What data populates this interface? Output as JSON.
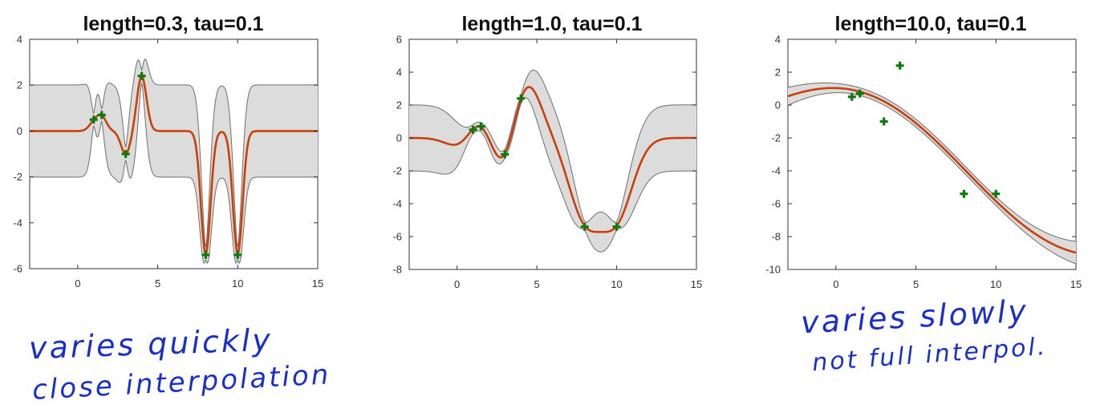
{
  "chart_data": [
    {
      "type": "line",
      "title": "length=0.3, tau=0.1",
      "length_scale": 0.3,
      "xlim": [
        -3,
        15
      ],
      "ylim": [
        -6,
        4
      ],
      "xticks": [
        "0",
        "5",
        "10",
        "15"
      ],
      "yticks": [
        "4",
        "2",
        "0",
        "-2",
        "-4",
        "-6"
      ],
      "points": [
        [
          1,
          0.5
        ],
        [
          1.5,
          0.7
        ],
        [
          3,
          -1
        ],
        [
          4,
          2.4
        ],
        [
          8,
          -5.4
        ],
        [
          10,
          -5.4
        ]
      ],
      "series": [
        {
          "label": "mean",
          "values": "mean"
        },
        {
          "label": "band",
          "values": "±2 std"
        }
      ],
      "annotation": [
        "varies quickly",
        "close interpolation"
      ]
    },
    {
      "type": "line",
      "title": "length=1.0, tau=0.1",
      "length_scale": 1.0,
      "xlim": [
        -3,
        15
      ],
      "ylim": [
        -8,
        6
      ],
      "xticks": [
        "0",
        "5",
        "10",
        "15"
      ],
      "yticks": [
        "6",
        "4",
        "2",
        "0",
        "-2",
        "-4",
        "-6",
        "-8"
      ],
      "points": [
        [
          1,
          0.5
        ],
        [
          1.5,
          0.7
        ],
        [
          3,
          -1
        ],
        [
          4,
          2.4
        ],
        [
          8,
          -5.4
        ],
        [
          10,
          -5.4
        ]
      ]
    },
    {
      "type": "line",
      "title": "length=10.0, tau=0.1",
      "length_scale": 10.0,
      "xlim": [
        -3,
        15
      ],
      "ylim": [
        -10,
        4
      ],
      "xticks": [
        "0",
        "5",
        "10",
        "15"
      ],
      "yticks": [
        "4",
        "2",
        "0",
        "-2",
        "-4",
        "-6",
        "-8",
        "-10"
      ],
      "points": [
        [
          1,
          0.5
        ],
        [
          1.5,
          0.7
        ],
        [
          3,
          -1
        ],
        [
          4,
          2.4
        ],
        [
          8,
          -5.4
        ],
        [
          10,
          -5.4
        ]
      ],
      "annotation": [
        "varies slowly",
        "not full interpol."
      ]
    }
  ],
  "style": {
    "mean_color": "#c9400c",
    "band_fill": "#dcdcdc",
    "band_edge": "#6e6e6e",
    "marker_color": "#0f7a0f",
    "ink_color": "#1a2fc9"
  },
  "notes": {
    "left_line1": "varies quickly",
    "left_line2": "close interpolation",
    "right_line1": "varies slowly",
    "right_line2": "not full interpol."
  }
}
